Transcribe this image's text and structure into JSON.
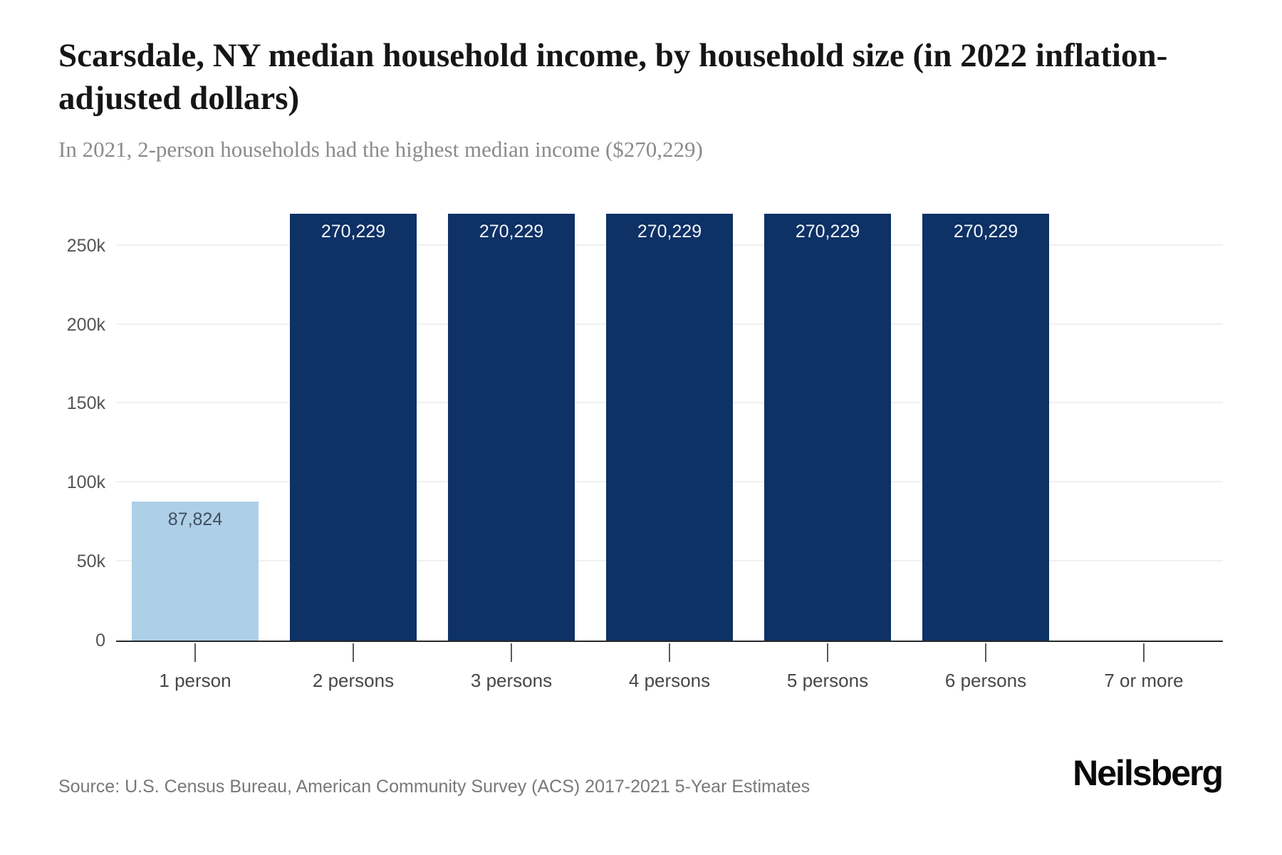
{
  "chart_data": {
    "type": "bar",
    "title": "Scarsdale, NY median household income, by household size (in 2022 inflation-adjusted dollars)",
    "subtitle": "In 2021, 2-person households had the highest median income ($270,229)",
    "categories": [
      "1 person",
      "2 persons",
      "3 persons",
      "4 persons",
      "5 persons",
      "6 persons",
      "7 or more"
    ],
    "values": [
      87824,
      270229,
      270229,
      270229,
      270229,
      270229,
      null
    ],
    "value_labels": [
      "87,824",
      "270,229",
      "270,229",
      "270,229",
      "270,229",
      "270,229",
      ""
    ],
    "xlabel": "",
    "ylabel": "",
    "ylim": [
      0,
      287300
    ],
    "yticks": [
      {
        "value": 0,
        "label": "0"
      },
      {
        "value": 50000,
        "label": "50k"
      },
      {
        "value": 100000,
        "label": "100k"
      },
      {
        "value": 150000,
        "label": "150k"
      },
      {
        "value": 200000,
        "label": "200k"
      },
      {
        "value": 250000,
        "label": "250k"
      }
    ],
    "grid": "horizontal-light",
    "legend": "none",
    "colors": {
      "bar_default": "#0e3166",
      "bar_highlight": "#aecfe8",
      "value_label_on_dark": "#f2f6fa",
      "value_label_on_light": "#41505f",
      "axis_line": "#27292b",
      "gridline": "#f0f0f0"
    },
    "bar_colors": [
      "#aecfe8",
      "#0e3166",
      "#0e3166",
      "#0e3166",
      "#0e3166",
      "#0e3166",
      "#0e3166"
    ],
    "value_label_colors": [
      "#41505f",
      "#f2f6fa",
      "#f2f6fa",
      "#f2f6fa",
      "#f2f6fa",
      "#f2f6fa",
      "#f2f6fa"
    ]
  },
  "footer": {
    "source": "Source: U.S. Census Bureau, American Community Survey (ACS) 2017-2021 5-Year Estimates",
    "brand": "Neilsberg"
  }
}
